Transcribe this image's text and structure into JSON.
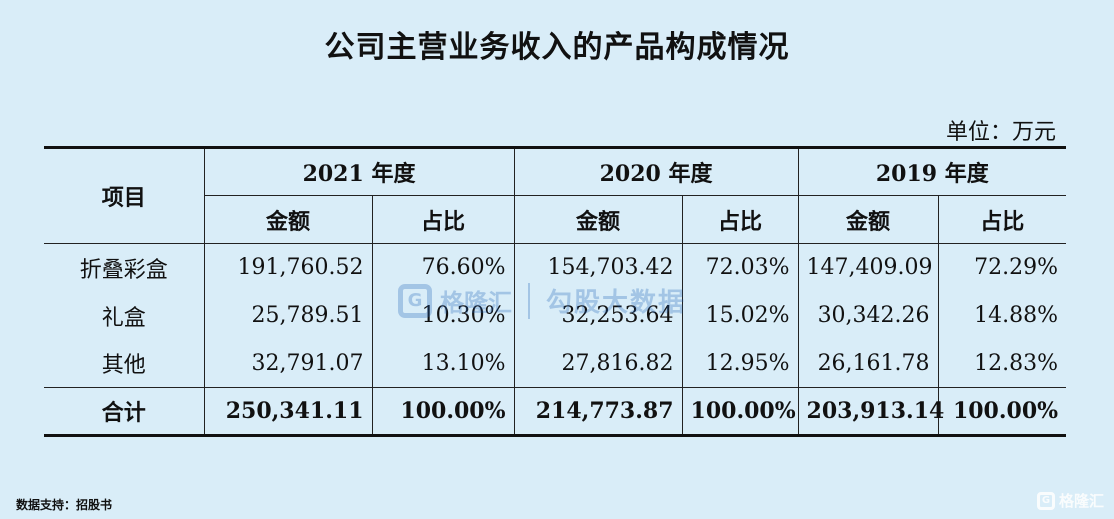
{
  "title": "公司主营业务收入的产品构成情况",
  "unit": "单位：万元",
  "table": {
    "item_header": "项目",
    "years": [
      "2021 年度",
      "2020 年度",
      "2019 年度"
    ],
    "sub_headers": {
      "amount": "金额",
      "ratio": "占比"
    },
    "rows": [
      {
        "label": "折叠彩盒",
        "cells": [
          "191,760.52",
          "76.60%",
          "154,703.42",
          "72.03%",
          "147,409.09",
          "72.29%"
        ]
      },
      {
        "label": "礼盒",
        "cells": [
          "25,789.51",
          "10.30%",
          "32,253.64",
          "15.02%",
          "30,342.26",
          "14.88%"
        ]
      },
      {
        "label": "其他",
        "cells": [
          "32,791.07",
          "13.10%",
          "27,816.82",
          "12.95%",
          "26,161.78",
          "12.83%"
        ]
      }
    ],
    "total": {
      "label": "合计",
      "cells": [
        "250,341.11",
        "100.00%",
        "214,773.87",
        "100.00%",
        "203,913.14",
        "100.00%"
      ]
    }
  },
  "source": "数据支持：招股书",
  "watermark": {
    "logo_letter": "G",
    "name": "格隆汇",
    "slogan": "勾股大数据"
  },
  "corner_brand": {
    "logo_letter": "G",
    "name": "格隆汇"
  }
}
